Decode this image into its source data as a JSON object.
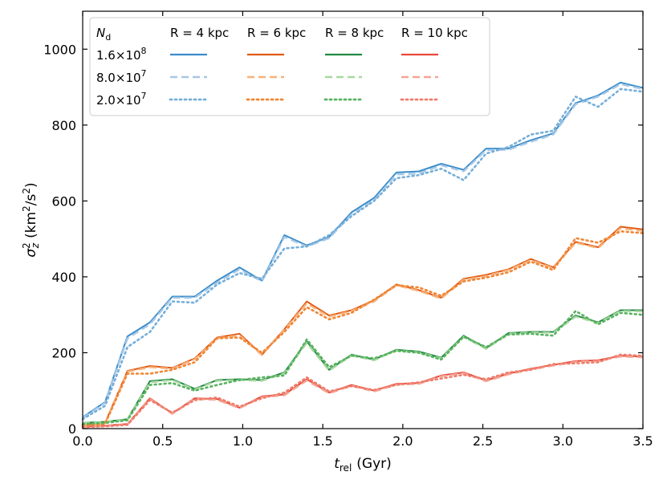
{
  "chart_data": {
    "type": "line",
    "xlabel_main": "t",
    "xlabel_sub": "rel",
    "xlabel_unit": "(Gyr)",
    "ylabel_main": "σ",
    "ylabel_sup": "2",
    "ylabel_sub": "z",
    "ylabel_unit_pre": "(km",
    "ylabel_unit_sup": "2",
    "ylabel_unit_post": "/s",
    "ylabel_unit_end": ")",
    "xlim": [
      0.0,
      3.5
    ],
    "ylim": [
      0,
      1100
    ],
    "xticks": [
      0.0,
      0.5,
      1.0,
      1.5,
      2.0,
      2.5,
      3.0,
      3.5
    ],
    "xtick_labels": [
      "0.0",
      "0.5",
      "1.0",
      "1.5",
      "2.0",
      "2.5",
      "3.0",
      "3.5"
    ],
    "yticks": [
      0,
      200,
      400,
      600,
      800,
      1000
    ],
    "ytick_labels": [
      "0",
      "200",
      "400",
      "600",
      "800",
      "1000"
    ],
    "legend": {
      "location": "upper-left",
      "nd_header": "N",
      "nd_header_sub": "d",
      "rows": [
        {
          "mant": "1.6",
          "exp": "8",
          "style": "solid"
        },
        {
          "mant": "8.0",
          "exp": "7",
          "style": "dashed"
        },
        {
          "mant": "2.0",
          "exp": "7",
          "style": "dotted"
        }
      ],
      "columns": [
        {
          "label": "R = 4 kpc",
          "color_key": "R4"
        },
        {
          "label": "R = 6 kpc",
          "color_key": "R6"
        },
        {
          "label": "R = 8 kpc",
          "color_key": "R8"
        },
        {
          "label": "R = 10 kpc",
          "color_key": "R10"
        }
      ],
      "times_symbol": "×",
      "base": "10"
    },
    "colors": {
      "R4": {
        "solid": "#3b8dca",
        "dashed": "#a7c8e6",
        "dotted": "#76afd9"
      },
      "R6": {
        "solid": "#e05a12",
        "dashed": "#f7b27b",
        "dotted": "#f08634"
      },
      "R8": {
        "solid": "#218a41",
        "dashed": "#a8d8a0",
        "dotted": "#58b35f"
      },
      "R10": {
        "solid": "#e8493a",
        "dashed": "#f4a594",
        "dotted": "#ef7d6c"
      }
    },
    "x": [
      0.0,
      0.14,
      0.28,
      0.42,
      0.56,
      0.7,
      0.84,
      0.98,
      1.12,
      1.26,
      1.4,
      1.54,
      1.68,
      1.82,
      1.96,
      2.1,
      2.24,
      2.38,
      2.52,
      2.66,
      2.8,
      2.94,
      3.08,
      3.22,
      3.36,
      3.5
    ],
    "series": [
      {
        "name": "R = 4 kpc, 1.6×10^8",
        "group": "R4",
        "style": "solid",
        "values": [
          30,
          70,
          243,
          280,
          348,
          348,
          390,
          425,
          390,
          510,
          483,
          505,
          570,
          608,
          675,
          678,
          698,
          682,
          738,
          738,
          760,
          778,
          858,
          878,
          912,
          898
        ]
      },
      {
        "name": "R = 4 kpc, 8.0×10^7",
        "group": "R4",
        "style": "dashed",
        "values": [
          28,
          68,
          238,
          275,
          345,
          345,
          385,
          420,
          388,
          505,
          480,
          502,
          565,
          602,
          670,
          672,
          694,
          678,
          734,
          735,
          756,
          775,
          855,
          875,
          908,
          895
        ]
      },
      {
        "name": "R = 4 kpc, 2.0×10^7",
        "group": "R4",
        "style": "dotted",
        "values": [
          25,
          60,
          215,
          255,
          335,
          332,
          380,
          410,
          395,
          475,
          480,
          510,
          560,
          600,
          660,
          668,
          685,
          655,
          725,
          742,
          775,
          785,
          875,
          848,
          895,
          888
        ]
      },
      {
        "name": "R = 6 kpc, 1.6×10^8",
        "group": "R6",
        "style": "solid",
        "values": [
          10,
          15,
          152,
          165,
          160,
          185,
          240,
          250,
          195,
          262,
          335,
          298,
          312,
          338,
          380,
          365,
          345,
          395,
          405,
          420,
          447,
          425,
          492,
          478,
          532,
          525
        ]
      },
      {
        "name": "R = 6 kpc, 8.0×10^7",
        "group": "R6",
        "style": "dashed",
        "values": [
          9,
          14,
          150,
          162,
          158,
          183,
          238,
          246,
          194,
          260,
          330,
          295,
          310,
          335,
          378,
          363,
          343,
          392,
          402,
          418,
          444,
          423,
          490,
          476,
          528,
          521
        ]
      },
      {
        "name": "R = 6 kpc, 2.0×10^7",
        "group": "R6",
        "style": "dotted",
        "values": [
          8,
          12,
          145,
          145,
          155,
          175,
          238,
          240,
          200,
          255,
          320,
          288,
          305,
          340,
          378,
          372,
          350,
          388,
          398,
          412,
          440,
          418,
          502,
          490,
          520,
          515
        ]
      },
      {
        "name": "R = 8 kpc, 1.6×10^8",
        "group": "R8",
        "style": "solid",
        "values": [
          15,
          18,
          25,
          125,
          130,
          105,
          128,
          130,
          128,
          148,
          230,
          155,
          195,
          182,
          208,
          203,
          187,
          245,
          212,
          252,
          255,
          255,
          298,
          280,
          312,
          312
        ]
      },
      {
        "name": "R = 8 kpc, 8.0×10^7",
        "group": "R8",
        "style": "dashed",
        "values": [
          14,
          17,
          24,
          122,
          128,
          103,
          126,
          128,
          126,
          146,
          226,
          153,
          193,
          180,
          206,
          201,
          185,
          242,
          210,
          250,
          253,
          253,
          295,
          278,
          310,
          309
        ]
      },
      {
        "name": "R = 8 kpc, 2.0×10^7",
        "group": "R8",
        "style": "dotted",
        "values": [
          12,
          15,
          22,
          115,
          120,
          100,
          115,
          128,
          135,
          140,
          235,
          162,
          192,
          185,
          205,
          200,
          182,
          242,
          215,
          248,
          250,
          245,
          310,
          275,
          305,
          300
        ]
      },
      {
        "name": "R = 10 kpc, 1.6×10^8",
        "group": "R10",
        "style": "solid",
        "values": [
          5,
          8,
          12,
          80,
          40,
          80,
          78,
          55,
          85,
          90,
          130,
          95,
          115,
          100,
          118,
          120,
          140,
          148,
          127,
          145,
          158,
          168,
          178,
          180,
          192,
          190
        ]
      },
      {
        "name": "R = 10 kpc, 8.0×10^7",
        "group": "R10",
        "style": "dashed",
        "values": [
          5,
          7,
          11,
          78,
          39,
          78,
          76,
          54,
          83,
          88,
          127,
          93,
          113,
          98,
          116,
          118,
          138,
          146,
          125,
          143,
          156,
          166,
          176,
          178,
          190,
          188
        ]
      },
      {
        "name": "R = 10 kpc, 2.0×10^7",
        "group": "R10",
        "style": "dotted",
        "values": [
          4,
          6,
          10,
          75,
          42,
          75,
          82,
          58,
          80,
          95,
          135,
          98,
          112,
          102,
          115,
          122,
          132,
          142,
          130,
          148,
          155,
          170,
          172,
          175,
          195,
          192
        ]
      }
    ]
  }
}
